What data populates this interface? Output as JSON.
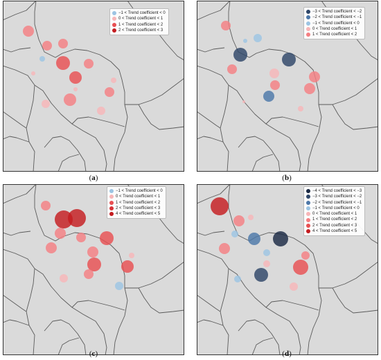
{
  "colors": {
    "map_fill": "#dadada",
    "border": "#5a5a5a",
    "frame": "#333333",
    "minus4": "#1b2a44",
    "minus3": "#2e4668",
    "minus2": "#4c77a8",
    "minus1": "#9cc4e3",
    "plus0": "#f7b6b8",
    "plus1": "#f47f82",
    "plus2": "#e84f52",
    "plus3": "#d83236",
    "plus4": "#c41c20"
  },
  "panels": [
    {
      "caption_pre": "(",
      "caption_letter": "a",
      "caption_post": ")",
      "legend": [
        {
          "label": "−1 < Trend coefficient < 0",
          "color": "minus1"
        },
        {
          "label": "0 < Trend coefficient < 1",
          "color": "plus0"
        },
        {
          "label": "1 < Trend coefficient < 2",
          "color": "plus2"
        },
        {
          "label": "2 < Trend coefficient < 3",
          "color": "plus4"
        }
      ],
      "stations": [
        {
          "x": 37,
          "y": 44,
          "r": 8,
          "c": "plus1"
        },
        {
          "x": 64,
          "y": 65,
          "r": 7,
          "c": "plus1"
        },
        {
          "x": 57,
          "y": 84,
          "r": 4,
          "c": "minus1"
        },
        {
          "x": 87,
          "y": 62,
          "r": 7,
          "c": "plus1"
        },
        {
          "x": 87,
          "y": 90,
          "r": 10,
          "c": "plus2"
        },
        {
          "x": 124,
          "y": 91,
          "r": 7,
          "c": "plus1"
        },
        {
          "x": 105,
          "y": 111,
          "r": 9,
          "c": "plus2"
        },
        {
          "x": 44,
          "y": 105,
          "r": 3,
          "c": "plus0"
        },
        {
          "x": 105,
          "y": 128,
          "r": 3,
          "c": "plus0"
        },
        {
          "x": 160,
          "y": 115,
          "r": 4,
          "c": "plus0"
        },
        {
          "x": 154,
          "y": 132,
          "r": 7,
          "c": "plus1"
        },
        {
          "x": 62,
          "y": 149,
          "r": 6,
          "c": "plus0"
        },
        {
          "x": 97,
          "y": 143,
          "r": 9,
          "c": "plus1"
        },
        {
          "x": 142,
          "y": 159,
          "r": 6,
          "c": "plus0"
        }
      ]
    },
    {
      "caption_pre": "(",
      "caption_letter": "b",
      "caption_post": ")",
      "legend": [
        {
          "label": "−3 < Trend coefficient < −2",
          "color": "minus3"
        },
        {
          "label": "−2 < Trend coefficient < −1",
          "color": "minus2"
        },
        {
          "label": "−1 < Trend coefficient < 0",
          "color": "minus1"
        },
        {
          "label": "0 < Trend coefficient < 1",
          "color": "plus0"
        },
        {
          "label": "1 < Trend coefficient < 2",
          "color": "plus1"
        }
      ],
      "stations": [
        {
          "x": 42,
          "y": 36,
          "r": 7,
          "c": "plus1"
        },
        {
          "x": 88,
          "y": 54,
          "r": 6,
          "c": "minus1"
        },
        {
          "x": 70,
          "y": 58,
          "r": 3,
          "c": "minus1"
        },
        {
          "x": 63,
          "y": 78,
          "r": 10,
          "c": "minus3"
        },
        {
          "x": 133,
          "y": 85,
          "r": 10,
          "c": "minus3"
        },
        {
          "x": 51,
          "y": 99,
          "r": 7,
          "c": "plus1"
        },
        {
          "x": 112,
          "y": 105,
          "r": 7,
          "c": "plus0"
        },
        {
          "x": 170,
          "y": 110,
          "r": 8,
          "c": "plus1"
        },
        {
          "x": 113,
          "y": 122,
          "r": 7,
          "c": "plus1"
        },
        {
          "x": 163,
          "y": 127,
          "r": 8,
          "c": "plus1"
        },
        {
          "x": 104,
          "y": 138,
          "r": 8,
          "c": "minus2"
        },
        {
          "x": 68,
          "y": 146,
          "r": 2,
          "c": "plus0"
        },
        {
          "x": 150,
          "y": 156,
          "r": 4,
          "c": "plus0"
        }
      ]
    },
    {
      "caption_pre": "(",
      "caption_letter": "c",
      "caption_post": ")",
      "legend": [
        {
          "label": "−1 < Trend coefficient < 0",
          "color": "minus1"
        },
        {
          "label": "0 < Trend coefficient < 1",
          "color": "plus0"
        },
        {
          "label": "1 < Trend coefficient < 2",
          "color": "plus2"
        },
        {
          "label": "2 < Trend coefficient < 3",
          "color": "plus3"
        },
        {
          "label": "4 < Trend coefficient < 5",
          "color": "plus4"
        }
      ],
      "stations": [
        {
          "x": 62,
          "y": 31,
          "r": 7,
          "c": "plus1"
        },
        {
          "x": 88,
          "y": 51,
          "r": 13,
          "c": "plus4"
        },
        {
          "x": 107,
          "y": 49,
          "r": 13,
          "c": "plus4"
        },
        {
          "x": 83,
          "y": 71,
          "r": 8,
          "c": "plus1"
        },
        {
          "x": 113,
          "y": 77,
          "r": 7,
          "c": "plus1"
        },
        {
          "x": 150,
          "y": 78,
          "r": 10,
          "c": "plus2"
        },
        {
          "x": 70,
          "y": 92,
          "r": 8,
          "c": "plus1"
        },
        {
          "x": 130,
          "y": 98,
          "r": 8,
          "c": "plus1"
        },
        {
          "x": 132,
          "y": 116,
          "r": 10,
          "c": "plus2"
        },
        {
          "x": 186,
          "y": 103,
          "r": 4,
          "c": "plus0"
        },
        {
          "x": 180,
          "y": 119,
          "r": 9,
          "c": "plus2"
        },
        {
          "x": 124,
          "y": 130,
          "r": 7,
          "c": "plus1"
        },
        {
          "x": 88,
          "y": 136,
          "r": 6,
          "c": "plus0"
        },
        {
          "x": 168,
          "y": 147,
          "r": 6,
          "c": "minus1"
        }
      ]
    },
    {
      "caption_pre": "(",
      "caption_letter": "d",
      "caption_post": ")",
      "legend": [
        {
          "label": "−4 < Trend coefficient < −3",
          "color": "minus4"
        },
        {
          "label": "−3 < Trend coefficient < −2",
          "color": "minus3"
        },
        {
          "label": "−2 < Trend coefficient < −1",
          "color": "minus2"
        },
        {
          "label": "−1 < Trend coefficient < 0",
          "color": "minus1"
        },
        {
          "label": "0 < Trend coefficient < 1",
          "color": "plus0"
        },
        {
          "label": "1 < Trend coefficient < 2",
          "color": "plus1"
        },
        {
          "label": "2 < Trend coefficient < 3",
          "color": "plus2"
        },
        {
          "label": "4 < Trend coefficient < 5",
          "color": "plus4"
        }
      ],
      "stations": [
        {
          "x": 33,
          "y": 32,
          "r": 13,
          "c": "plus4"
        },
        {
          "x": 78,
          "y": 48,
          "r": 4,
          "c": "plus0"
        },
        {
          "x": 61,
          "y": 53,
          "r": 8,
          "c": "plus1"
        },
        {
          "x": 55,
          "y": 72,
          "r": 5,
          "c": "minus1"
        },
        {
          "x": 83,
          "y": 79,
          "r": 9,
          "c": "minus2"
        },
        {
          "x": 121,
          "y": 79,
          "r": 11,
          "c": "minus4"
        },
        {
          "x": 40,
          "y": 93,
          "r": 8,
          "c": "plus1"
        },
        {
          "x": 101,
          "y": 99,
          "r": 5,
          "c": "minus1"
        },
        {
          "x": 157,
          "y": 103,
          "r": 6,
          "c": "plus1"
        },
        {
          "x": 101,
          "y": 115,
          "r": 5,
          "c": "plus0"
        },
        {
          "x": 150,
          "y": 120,
          "r": 11,
          "c": "plus2"
        },
        {
          "x": 93,
          "y": 131,
          "r": 10,
          "c": "minus3"
        },
        {
          "x": 59,
          "y": 137,
          "r": 5,
          "c": "minus1"
        },
        {
          "x": 140,
          "y": 148,
          "r": 6,
          "c": "plus0"
        }
      ]
    }
  ]
}
